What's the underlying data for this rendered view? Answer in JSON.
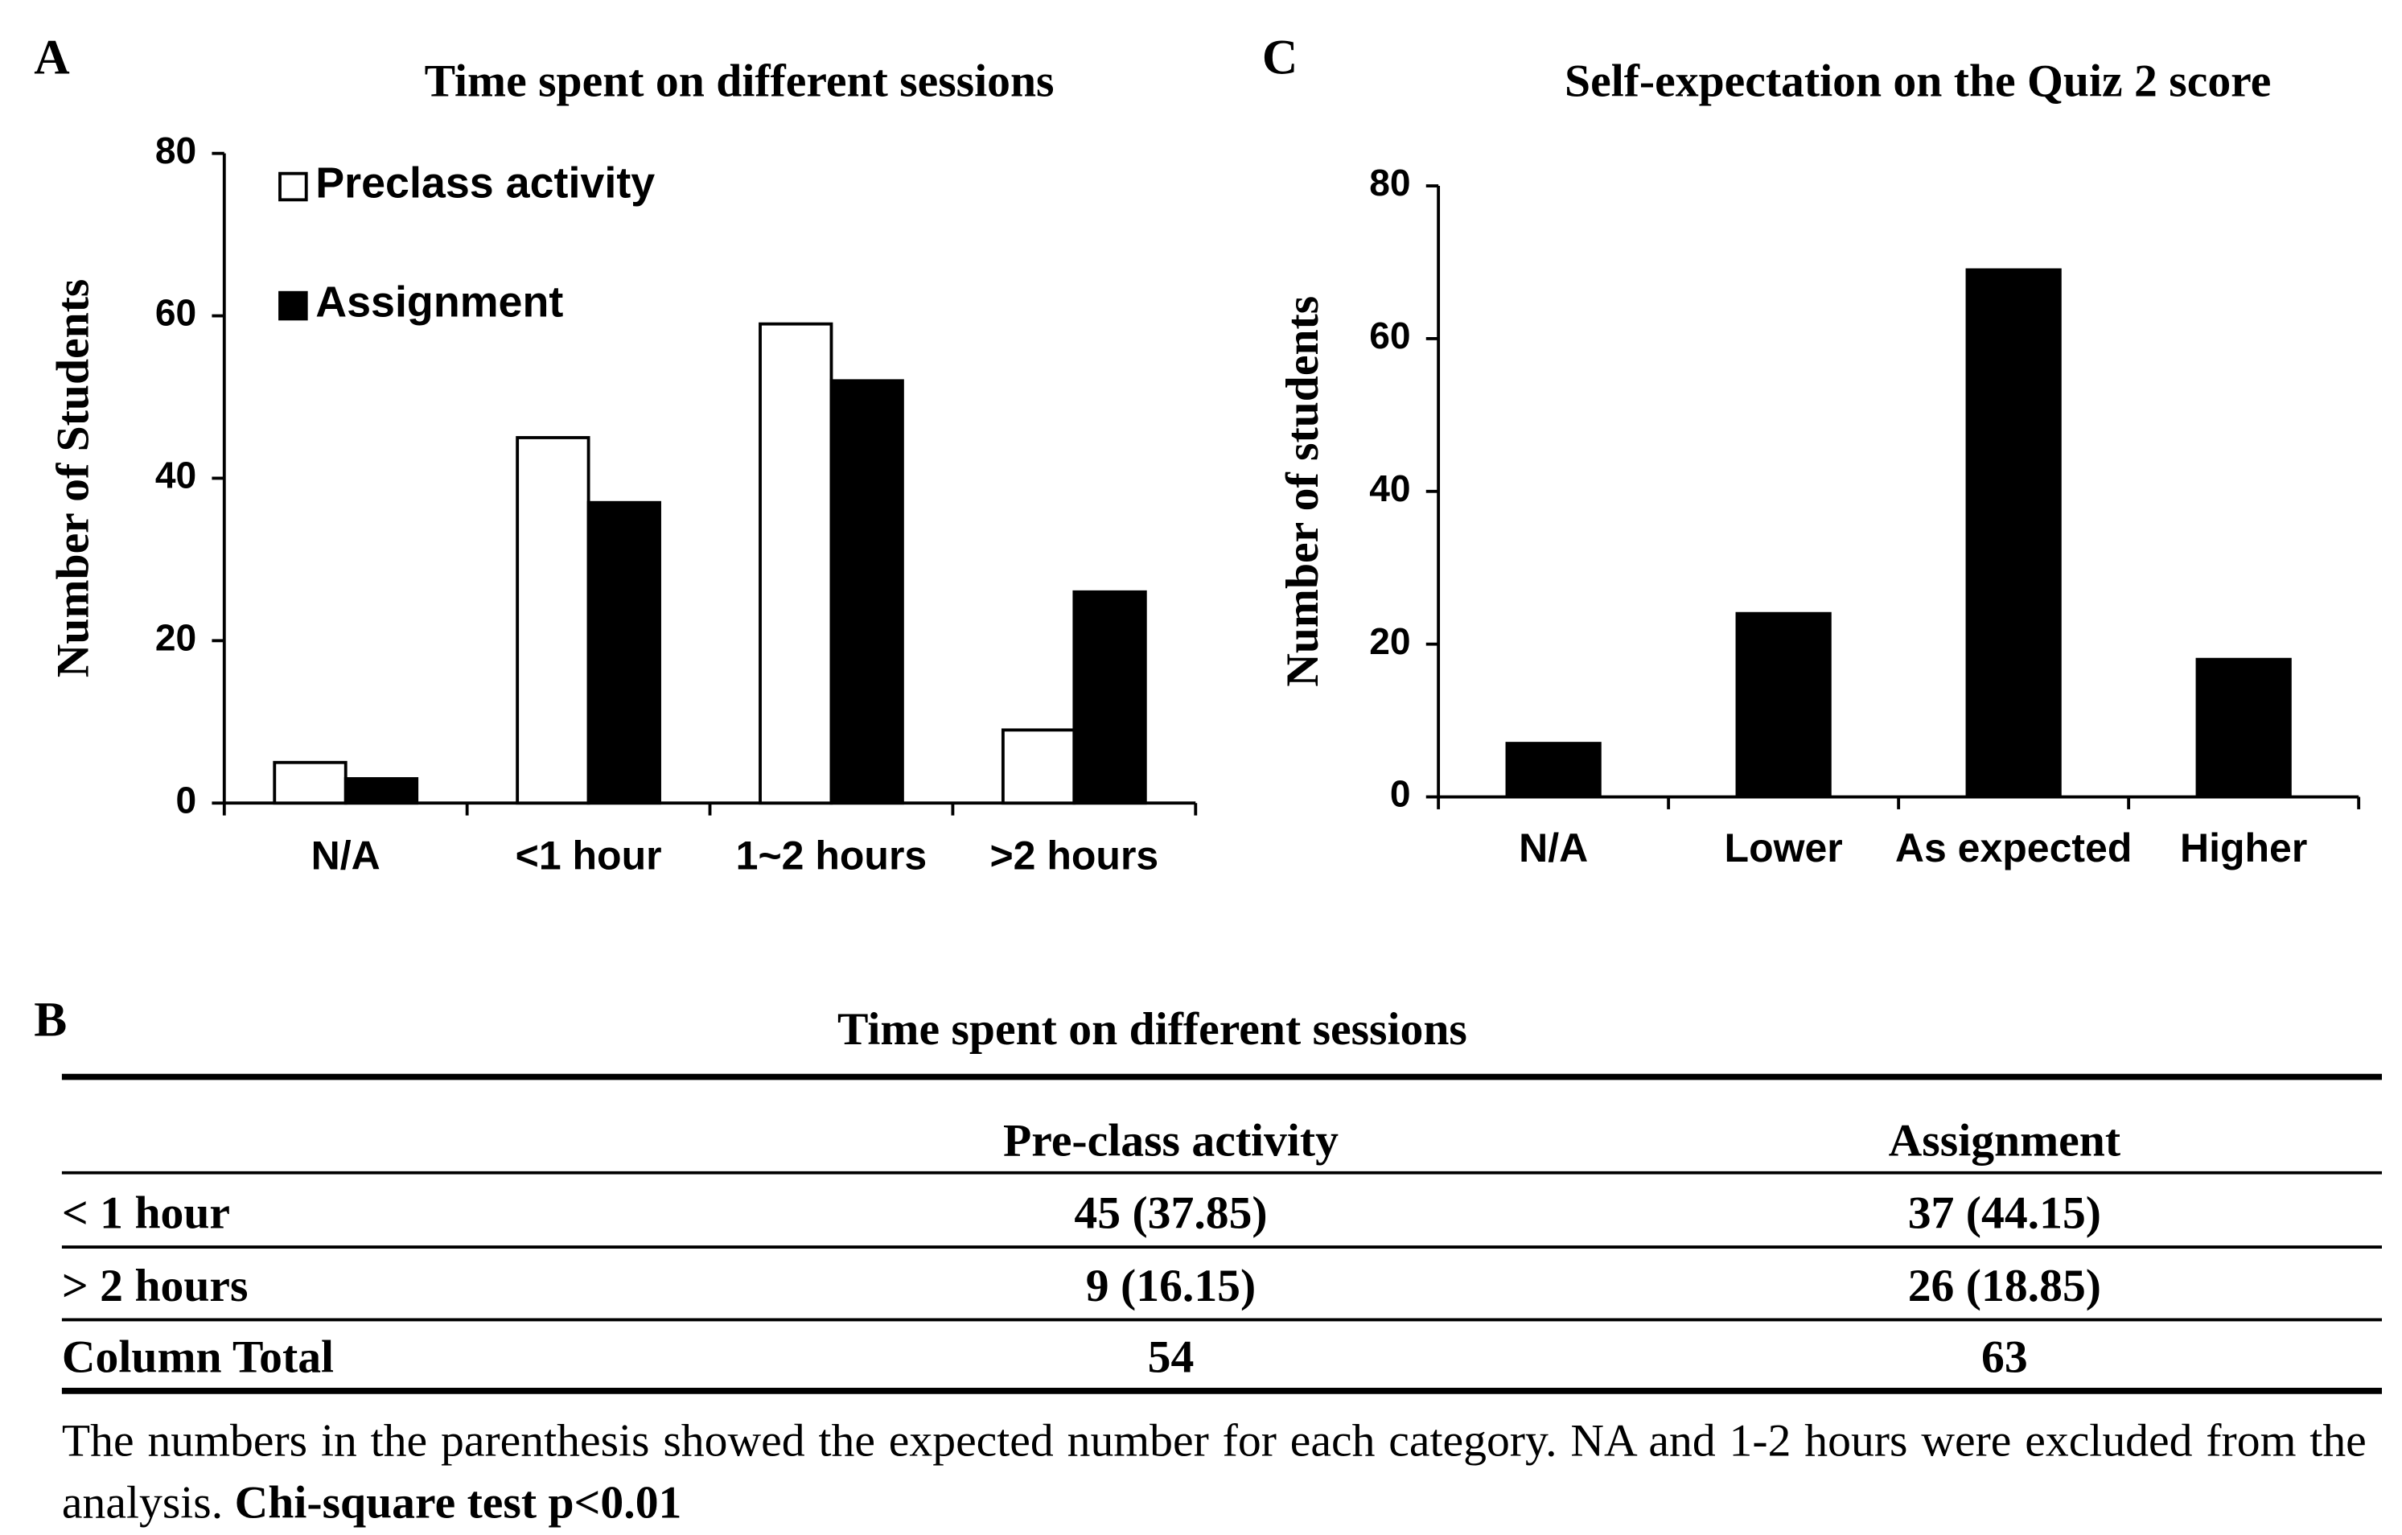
{
  "chart_data": [
    {
      "type": "bar",
      "panel": "A",
      "title": "Time spent on different sessions",
      "ylabel": "Number of Students",
      "categories": [
        "N/A",
        "<1 hour",
        "1~2 hours",
        ">2  hours"
      ],
      "series": [
        {
          "name": "Preclass activity",
          "color": "#ffffff",
          "values": [
            5,
            45,
            59,
            9
          ]
        },
        {
          "name": "Assignment",
          "color": "#000000",
          "values": [
            3,
            37,
            52,
            26
          ]
        }
      ],
      "ylim": [
        0,
        80
      ],
      "yticks": [
        0,
        20,
        40,
        60,
        80
      ],
      "legend": "upper-left",
      "grid": false
    },
    {
      "type": "bar",
      "panel": "C",
      "title": "Self-expectation on the Quiz 2 score",
      "ylabel": "Number of students",
      "categories": [
        "N/A",
        "Lower",
        "As expected",
        "Higher"
      ],
      "values": [
        7,
        24,
        69,
        18
      ],
      "color": "#000000",
      "ylim": [
        0,
        80
      ],
      "yticks": [
        0,
        20,
        40,
        60,
        80
      ],
      "grid": false
    }
  ],
  "table": {
    "panel": "B",
    "title": "Time spent on different sessions",
    "columns": [
      "Pre-class activity",
      "Assignment"
    ],
    "rows": [
      [
        "< 1 hour",
        "45 (37.85)",
        "37 (44.15)"
      ],
      [
        "> 2 hours",
        "9 (16.15)",
        "26 (18.85)"
      ],
      [
        "Column Total",
        "54",
        "63"
      ]
    ],
    "note": "The numbers in the parenthesis showed the expected number for each category. NA and 1-2 hours were excluded from the analysis.",
    "test": "Chi-square test  p<0.01"
  }
}
